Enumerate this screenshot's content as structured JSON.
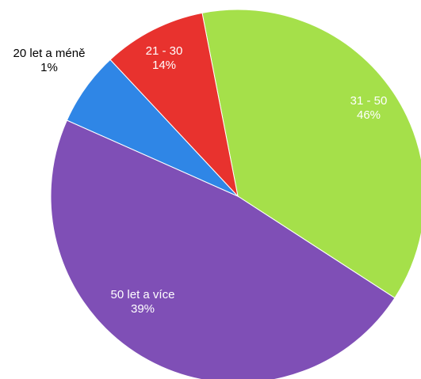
{
  "chart_data": {
    "type": "pie",
    "title": "",
    "slices": [
      {
        "label": "31 - 50",
        "value": 46,
        "value_label": "46%",
        "color": "#a5e04a",
        "label_color": "#ffffff"
      },
      {
        "label": "50 let a více",
        "value": 39,
        "value_label": "39%",
        "color": "#7f4fb6",
        "label_color": "#ffffff"
      },
      {
        "label": "20 let a méně",
        "value": 1,
        "value_label": "1%",
        "color": "#2f86e6",
        "label_color": "#000000"
      },
      {
        "label": "21 - 30",
        "value": 14,
        "value_label": "14%",
        "color": "#e8322e",
        "label_color": "#ffffff"
      }
    ]
  }
}
